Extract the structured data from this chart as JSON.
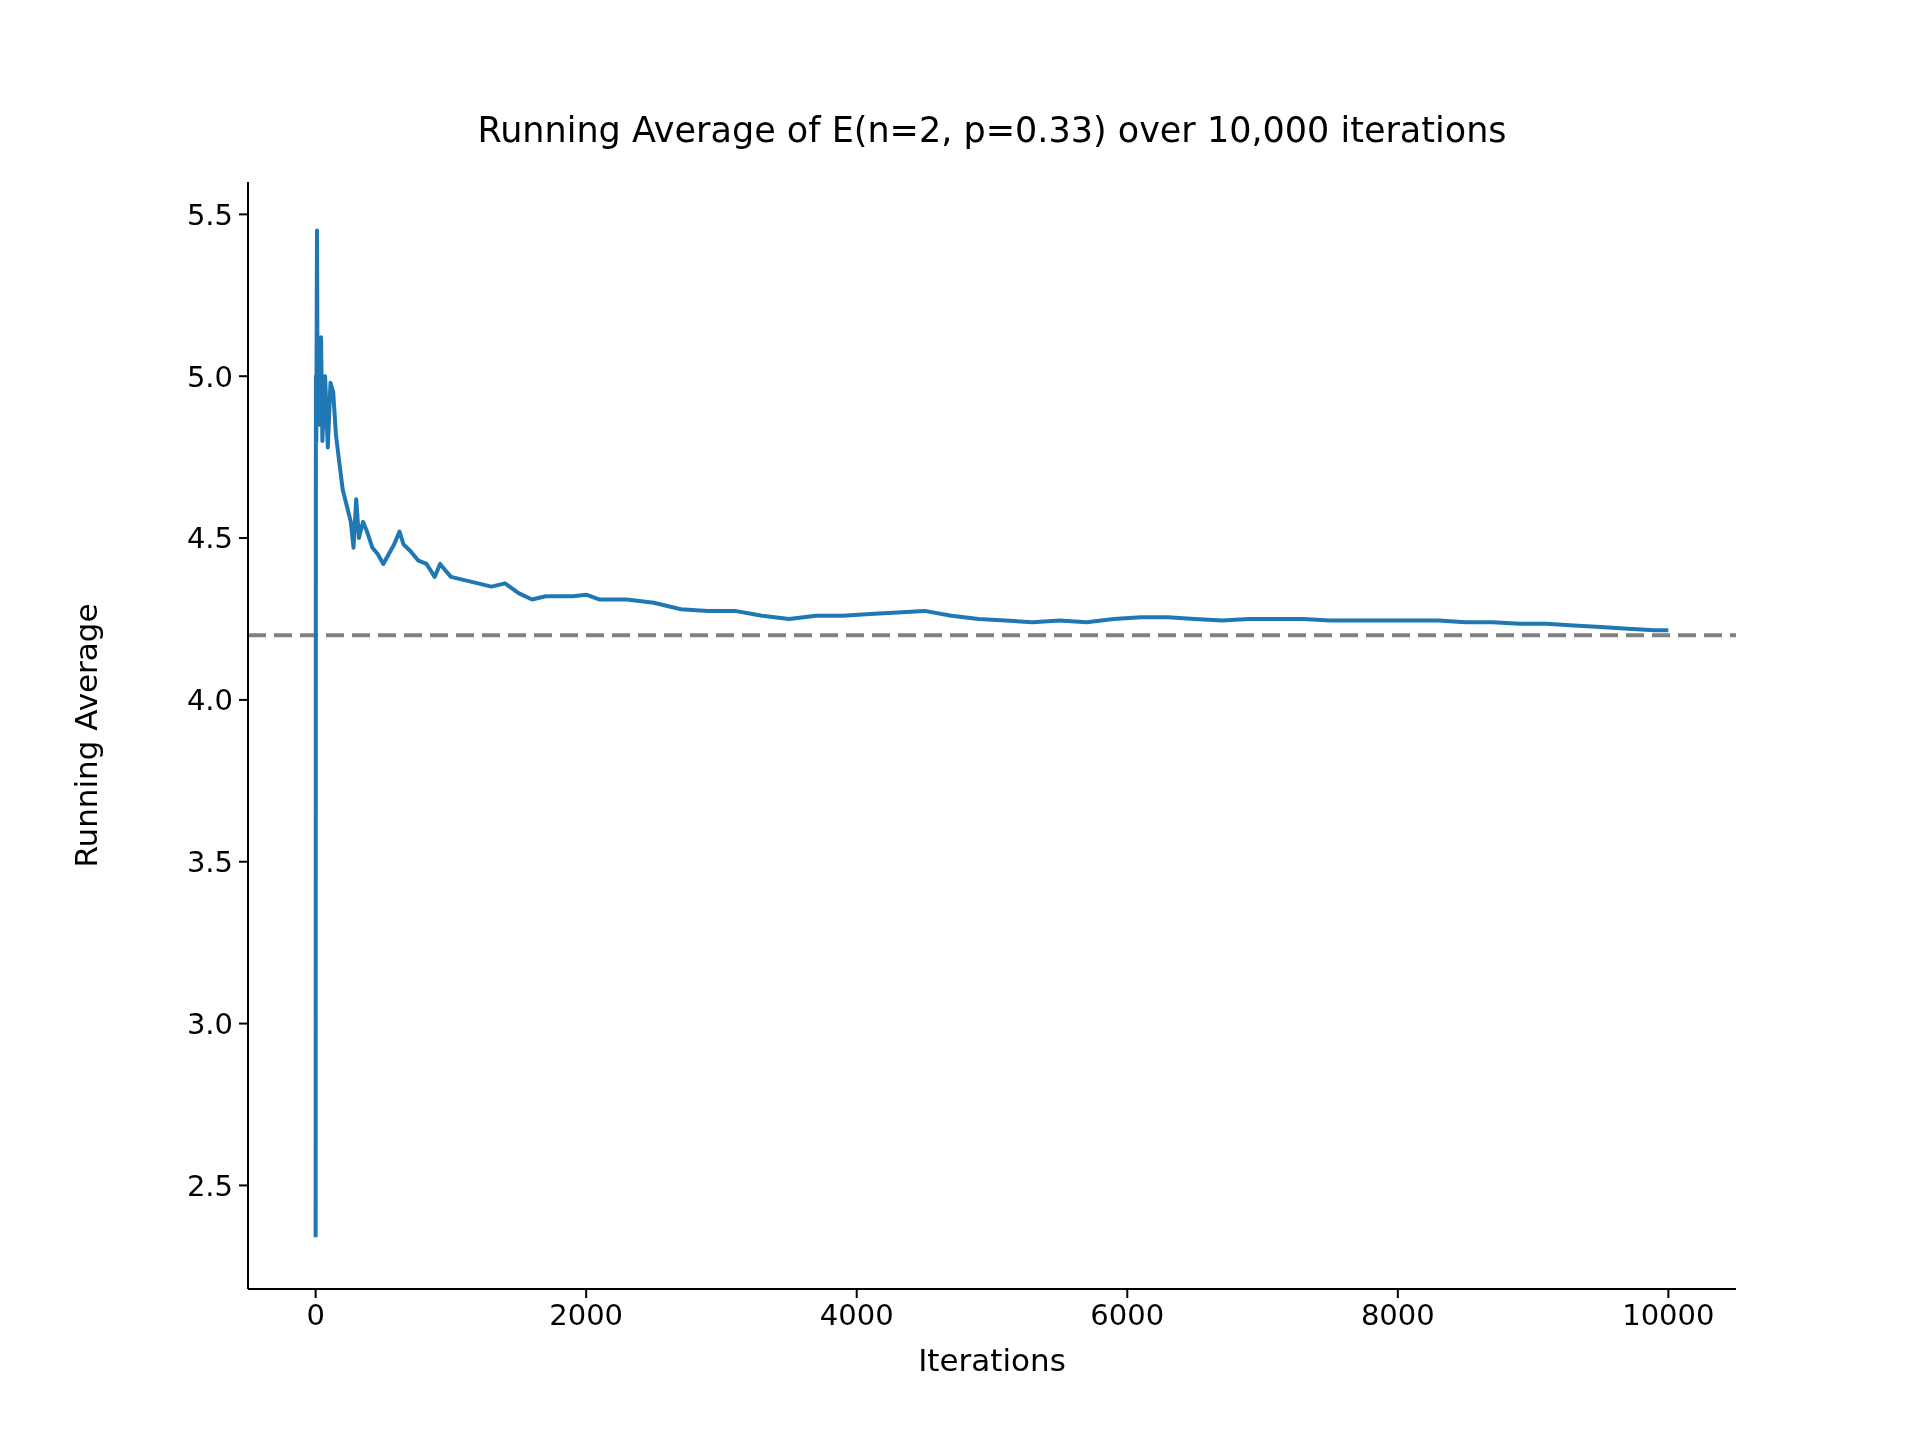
{
  "chart_data": {
    "type": "line",
    "title": "Running Average of E(n=2, p=0.33) over 10,000 iterations",
    "xlabel": "Iterations",
    "ylabel": "Running Average",
    "x": [
      0,
      2,
      5,
      10,
      15,
      20,
      30,
      40,
      50,
      70,
      90,
      110,
      130,
      150,
      170,
      200,
      230,
      260,
      280,
      300,
      320,
      350,
      380,
      420,
      460,
      500,
      540,
      580,
      620,
      650,
      700,
      760,
      820,
      880,
      920,
      960,
      1000,
      1100,
      1200,
      1300,
      1400,
      1500,
      1600,
      1700,
      1800,
      1900,
      2000,
      2100,
      2300,
      2500,
      2700,
      2900,
      3100,
      3300,
      3500,
      3700,
      3900,
      4100,
      4300,
      4500,
      4700,
      4900,
      5100,
      5300,
      5500,
      5700,
      5900,
      6100,
      6300,
      6500,
      6700,
      6900,
      7100,
      7300,
      7500,
      7700,
      7900,
      8100,
      8300,
      8500,
      8700,
      8900,
      9100,
      9300,
      9500,
      9700,
      9900,
      10000
    ],
    "series": [
      {
        "color": "#1f77b4",
        "values": [
          2.34,
          5.0,
          4.8,
          5.45,
          4.9,
          5.1,
          4.85,
          5.12,
          4.8,
          5.0,
          4.78,
          4.98,
          4.95,
          4.82,
          4.75,
          4.65,
          4.6,
          4.55,
          4.47,
          4.62,
          4.5,
          4.55,
          4.52,
          4.47,
          4.45,
          4.42,
          4.45,
          4.48,
          4.52,
          4.48,
          4.46,
          4.43,
          4.42,
          4.38,
          4.42,
          4.4,
          4.38,
          4.37,
          4.36,
          4.35,
          4.36,
          4.33,
          4.31,
          4.32,
          4.32,
          4.32,
          4.325,
          4.31,
          4.31,
          4.3,
          4.28,
          4.275,
          4.275,
          4.26,
          4.25,
          4.26,
          4.26,
          4.265,
          4.27,
          4.275,
          4.26,
          4.25,
          4.245,
          4.24,
          4.245,
          4.24,
          4.25,
          4.255,
          4.255,
          4.25,
          4.245,
          4.25,
          4.25,
          4.25,
          4.245,
          4.245,
          4.245,
          4.245,
          4.245,
          4.24,
          4.24,
          4.235,
          4.235,
          4.23,
          4.225,
          4.22,
          4.215,
          4.215
        ]
      }
    ],
    "xlim": [
      -500,
      10500
    ],
    "xticks": [
      0,
      2000,
      4000,
      6000,
      8000,
      10000
    ],
    "ylim": [
      2.18,
      5.6
    ],
    "yticks": [
      2.5,
      {
        "value": 3,
        "label": "3.0"
      },
      3.5,
      {
        "value": 4,
        "label": "4.0"
      },
      4.5,
      {
        "value": 5,
        "label": "5.0"
      },
      5.5
    ],
    "ref_lines": [
      {
        "axis": "y",
        "value": 4.2,
        "color": "#808080",
        "line_style": "dashed"
      }
    ],
    "grid": false,
    "legend": false,
    "marker": "none",
    "line_style": "solid"
  }
}
